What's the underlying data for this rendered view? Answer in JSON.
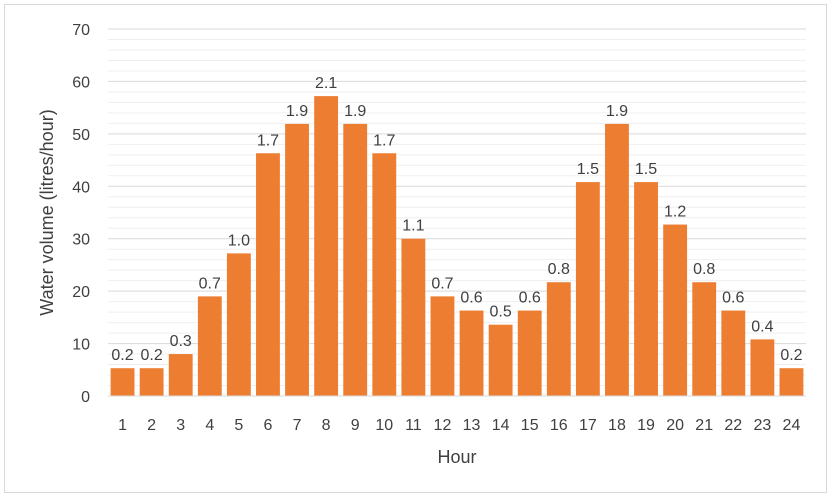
{
  "chart_data": {
    "type": "bar",
    "xlabel": "Hour",
    "ylabel": "Water volume (litres/hour)",
    "ylim": [
      0,
      70
    ],
    "yticks": [
      0,
      10,
      20,
      30,
      40,
      50,
      60,
      70
    ],
    "grid": true,
    "bar_color": "#ed7d31",
    "categories": [
      "1",
      "2",
      "3",
      "4",
      "5",
      "6",
      "7",
      "8",
      "9",
      "10",
      "11",
      "12",
      "13",
      "14",
      "15",
      "16",
      "17",
      "18",
      "19",
      "20",
      "21",
      "22",
      "23",
      "24"
    ],
    "values": [
      5.3,
      5.3,
      8,
      19,
      27.2,
      46.3,
      51.9,
      57.2,
      51.9,
      46.3,
      30,
      19,
      16.3,
      13.6,
      16.3,
      21.7,
      40.8,
      51.9,
      40.8,
      32.7,
      21.7,
      16.3,
      10.8,
      5.3
    ],
    "data_labels": [
      "0.2",
      "0.2",
      "0.3",
      "0.7",
      "1.0",
      "1.7",
      "1.9",
      "2.1",
      "1.9",
      "1.7",
      "1.1",
      "0.7",
      "0.6",
      "0.5",
      "0.6",
      "0.8",
      "1.5",
      "1.9",
      "1.5",
      "1.2",
      "0.8",
      "0.6",
      "0.4",
      "0.2"
    ]
  }
}
